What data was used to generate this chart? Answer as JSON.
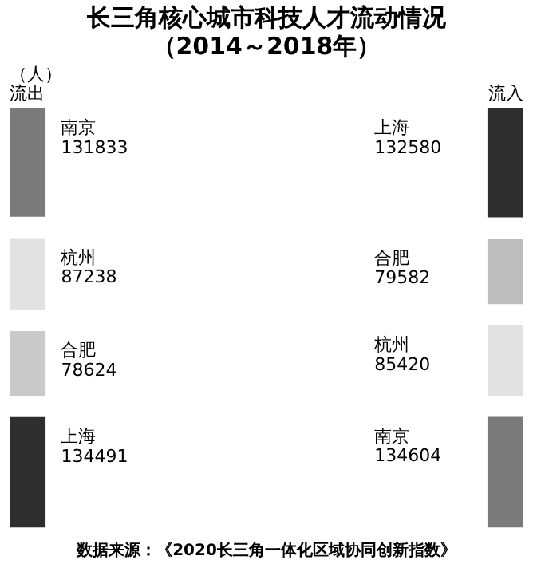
{
  "chart_data": {
    "type": "other",
    "title": "长三角核心城市科技人才流动情况",
    "subtitle": "（2014～2018年）",
    "ylabel": "（人）",
    "annotations": [
      "数据来源：《2020长三角一体化区域协同创新指数》"
    ],
    "data_labels": true,
    "categories": [
      "南京",
      "杭州",
      "合肥",
      "上海",
      "上海",
      "合肥",
      "杭州",
      "南京"
    ],
    "series": [
      {
        "name": "流出",
        "values": [
          131833,
          87238,
          78624,
          134491,
          null,
          null,
          null,
          null
        ],
        "colors": [
          "#7a7a7a",
          "#e2e2e2",
          "#c9c9c9",
          "#2e2e2e",
          null,
          null,
          null,
          null
        ]
      },
      {
        "name": "流入",
        "values": [
          null,
          null,
          null,
          null,
          132580,
          79582,
          85420,
          134604
        ],
        "colors": [
          null,
          null,
          null,
          null,
          "#2e2e2e",
          "#bdbdbd",
          "#e2e2e2",
          "#7a7a7a"
        ]
      }
    ]
  }
}
